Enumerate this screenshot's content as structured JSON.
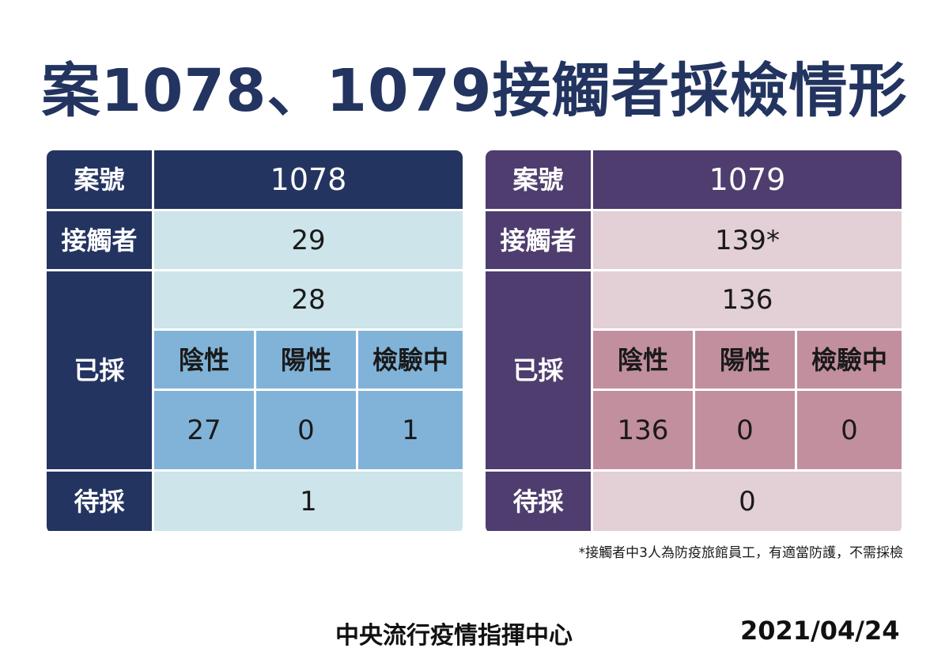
{
  "title": "案1078、1079接觸者採檢情形",
  "labels": {
    "case_no": "案號",
    "contacts": "接觸者",
    "tested": "已採",
    "negative": "陰性",
    "positive": "陽性",
    "pending_result": "檢驗中",
    "awaiting_test": "待採"
  },
  "tables": [
    {
      "case": "1078",
      "contacts": "29",
      "tested": "28",
      "negative": "27",
      "positive": "0",
      "pending_result": "1",
      "awaiting_test": "1"
    },
    {
      "case": "1079",
      "contacts": "139*",
      "tested": "136",
      "negative": "136",
      "positive": "0",
      "pending_result": "0",
      "awaiting_test": "0"
    }
  ],
  "footnote": "*接觸者中3人為防疫旅館員工，有適當防護，不需採檢",
  "footer": {
    "org": "中央流行疫情指揮中心",
    "date": "2021/04/24"
  },
  "colors": {
    "title": "#22345f",
    "table1_dark": "#233461",
    "table1_light": "#cce4ea",
    "table1_mid": "#81b3d8",
    "table2_dark": "#4e3d6e",
    "table2_light": "#e3cfd6",
    "table2_mid": "#c28f9e"
  }
}
